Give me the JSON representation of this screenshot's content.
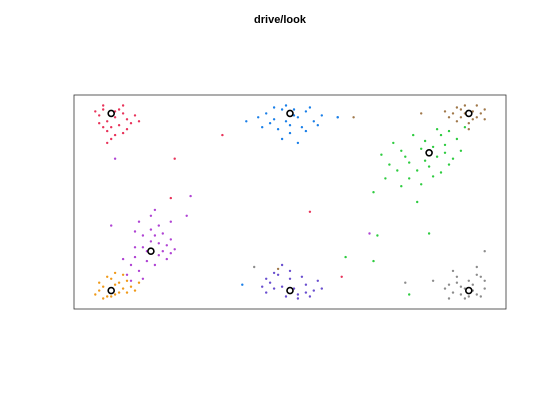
{
  "chart_data": {
    "type": "scatter",
    "title": "drive/look",
    "xlabel": "",
    "ylabel": "",
    "xlim": [
      0,
      1
    ],
    "ylim": [
      0,
      1
    ],
    "grid": false,
    "axis_ticks": false,
    "series": [
      {
        "color": "#e8335a",
        "center": [
          0.05,
          0.95
        ],
        "points": [
          [
            0.03,
            0.97
          ],
          [
            0.06,
            0.93
          ],
          [
            0.08,
            0.95
          ],
          [
            0.04,
            0.91
          ],
          [
            0.02,
            0.94
          ],
          [
            0.07,
            0.89
          ],
          [
            0.05,
            0.88
          ],
          [
            0.09,
            0.92
          ],
          [
            0.03,
            0.99
          ],
          [
            0.06,
            0.96
          ],
          [
            0.1,
            0.9
          ],
          [
            0.04,
            0.86
          ],
          [
            0.08,
            0.85
          ],
          [
            0.02,
            0.9
          ],
          [
            0.11,
            0.94
          ],
          [
            0.05,
            0.82
          ],
          [
            0.07,
            0.97
          ],
          [
            0.01,
            0.96
          ],
          [
            0.09,
            0.87
          ],
          [
            0.04,
            0.8
          ],
          [
            0.06,
            0.84
          ],
          [
            0.12,
            0.91
          ],
          [
            0.03,
            0.88
          ],
          [
            0.08,
            0.99
          ]
        ]
      },
      {
        "color": "#1a7fe8",
        "center": [
          0.5,
          0.95
        ],
        "points": [
          [
            0.48,
            0.97
          ],
          [
            0.52,
            0.93
          ],
          [
            0.46,
            0.92
          ],
          [
            0.54,
            0.96
          ],
          [
            0.5,
            0.89
          ],
          [
            0.44,
            0.95
          ],
          [
            0.56,
            0.91
          ],
          [
            0.49,
            0.99
          ],
          [
            0.53,
            0.88
          ],
          [
            0.47,
            0.87
          ],
          [
            0.51,
            0.94
          ],
          [
            0.45,
            0.9
          ],
          [
            0.55,
            0.98
          ],
          [
            0.42,
            0.93
          ],
          [
            0.58,
            0.94
          ],
          [
            0.5,
            0.85
          ],
          [
            0.48,
            0.82
          ],
          [
            0.52,
            0.8
          ],
          [
            0.46,
            0.98
          ],
          [
            0.54,
            0.86
          ],
          [
            0.43,
            0.88
          ],
          [
            0.57,
            0.89
          ],
          [
            0.49,
            0.91
          ],
          [
            0.51,
            0.97
          ],
          [
            0.62,
            0.93
          ],
          [
            0.39,
            0.91
          ]
        ]
      },
      {
        "color": "#2ecc40",
        "center": [
          0.85,
          0.75
        ],
        "points": [
          [
            0.83,
            0.77
          ],
          [
            0.87,
            0.73
          ],
          [
            0.8,
            0.7
          ],
          [
            0.89,
            0.79
          ],
          [
            0.85,
            0.68
          ],
          [
            0.78,
            0.76
          ],
          [
            0.91,
            0.72
          ],
          [
            0.84,
            0.81
          ],
          [
            0.82,
            0.66
          ],
          [
            0.88,
            0.84
          ],
          [
            0.76,
            0.8
          ],
          [
            0.93,
            0.76
          ],
          [
            0.86,
            0.63
          ],
          [
            0.79,
            0.73
          ],
          [
            0.9,
            0.69
          ],
          [
            0.81,
            0.84
          ],
          [
            0.87,
            0.87
          ],
          [
            0.75,
            0.69
          ],
          [
            0.92,
            0.82
          ],
          [
            0.84,
            0.71
          ],
          [
            0.8,
            0.62
          ],
          [
            0.86,
            0.78
          ],
          [
            0.77,
            0.66
          ],
          [
            0.94,
            0.88
          ],
          [
            0.73,
            0.74
          ],
          [
            0.83,
            0.59
          ],
          [
            0.89,
            0.75
          ],
          [
            0.71,
            0.55
          ],
          [
            0.82,
            0.5
          ],
          [
            0.78,
            0.58
          ],
          [
            0.85,
            0.34
          ],
          [
            0.88,
            0.65
          ],
          [
            0.74,
            0.62
          ],
          [
            0.9,
            0.86
          ]
        ]
      },
      {
        "color": "#a0784a",
        "center": [
          0.95,
          0.95
        ],
        "points": [
          [
            0.93,
            0.97
          ],
          [
            0.97,
            0.93
          ],
          [
            0.95,
            0.9
          ],
          [
            0.91,
            0.95
          ],
          [
            0.99,
            0.97
          ],
          [
            0.94,
            0.99
          ],
          [
            0.96,
            0.92
          ],
          [
            0.92,
            0.91
          ],
          [
            0.98,
            0.95
          ],
          [
            0.9,
            0.93
          ],
          [
            0.96,
            0.96
          ],
          [
            0.93,
            0.93
          ],
          [
            0.97,
            0.99
          ],
          [
            0.89,
            0.96
          ],
          [
            0.95,
            0.87
          ],
          [
            0.99,
            0.92
          ],
          [
            0.94,
            0.95
          ],
          [
            0.92,
            0.98
          ]
        ]
      },
      {
        "color": "#b044d4",
        "center": [
          0.15,
          0.25
        ],
        "points": [
          [
            0.13,
            0.27
          ],
          [
            0.17,
            0.23
          ],
          [
            0.15,
            0.3
          ],
          [
            0.11,
            0.22
          ],
          [
            0.19,
            0.28
          ],
          [
            0.14,
            0.2
          ],
          [
            0.16,
            0.33
          ],
          [
            0.1,
            0.18
          ],
          [
            0.18,
            0.25
          ],
          [
            0.12,
            0.15
          ],
          [
            0.2,
            0.31
          ],
          [
            0.15,
            0.36
          ],
          [
            0.09,
            0.13
          ],
          [
            0.14,
            0.25
          ],
          [
            0.17,
            0.38
          ],
          [
            0.11,
            0.27
          ],
          [
            0.19,
            0.21
          ],
          [
            0.13,
            0.33
          ],
          [
            0.16,
            0.18
          ],
          [
            0.08,
            0.21
          ],
          [
            0.15,
            0.43
          ],
          [
            0.21,
            0.26
          ],
          [
            0.1,
            0.1
          ],
          [
            0.18,
            0.34
          ],
          [
            0.12,
            0.4
          ],
          [
            0.05,
            0.38
          ],
          [
            0.24,
            0.43
          ],
          [
            0.16,
            0.46
          ],
          [
            0.2,
            0.24
          ],
          [
            0.13,
            0.11
          ],
          [
            0.11,
            0.35
          ],
          [
            0.17,
            0.29
          ]
        ]
      },
      {
        "color": "#f09a1a",
        "center": [
          0.05,
          0.05
        ],
        "points": [
          [
            0.03,
            0.07
          ],
          [
            0.06,
            0.03
          ],
          [
            0.08,
            0.06
          ],
          [
            0.04,
            0.02
          ],
          [
            0.02,
            0.05
          ],
          [
            0.07,
            0.09
          ],
          [
            0.05,
            0.11
          ],
          [
            0.09,
            0.04
          ],
          [
            0.03,
            0.01
          ],
          [
            0.06,
            0.08
          ],
          [
            0.1,
            0.07
          ],
          [
            0.04,
            0.12
          ],
          [
            0.01,
            0.03
          ],
          [
            0.08,
            0.13
          ],
          [
            0.11,
            0.05
          ],
          [
            0.05,
            0.02
          ],
          [
            0.07,
            0.04
          ],
          [
            0.02,
            0.09
          ],
          [
            0.09,
            0.1
          ],
          [
            0.06,
            0.14
          ],
          [
            0.12,
            0.09
          ]
        ]
      },
      {
        "color": "#6a4fcf",
        "center": [
          0.5,
          0.05
        ],
        "points": [
          [
            0.48,
            0.07
          ],
          [
            0.52,
            0.03
          ],
          [
            0.46,
            0.06
          ],
          [
            0.54,
            0.08
          ],
          [
            0.5,
            0.11
          ],
          [
            0.44,
            0.04
          ],
          [
            0.56,
            0.05
          ],
          [
            0.49,
            0.02
          ],
          [
            0.53,
            0.12
          ],
          [
            0.47,
            0.13
          ],
          [
            0.51,
            0.06
          ],
          [
            0.45,
            0.09
          ],
          [
            0.55,
            0.02
          ],
          [
            0.43,
            0.07
          ],
          [
            0.57,
            0.1
          ],
          [
            0.5,
            0.15
          ],
          [
            0.48,
            0.18
          ],
          [
            0.52,
            0.01
          ],
          [
            0.46,
            0.14
          ],
          [
            0.54,
            0.04
          ],
          [
            0.44,
            0.11
          ],
          [
            0.58,
            0.06
          ]
        ]
      },
      {
        "color": "#8c8c8c",
        "center": [
          0.95,
          0.05
        ],
        "points": [
          [
            0.93,
            0.07
          ],
          [
            0.97,
            0.03
          ],
          [
            0.95,
            0.1
          ],
          [
            0.91,
            0.04
          ],
          [
            0.99,
            0.06
          ],
          [
            0.94,
            0.01
          ],
          [
            0.96,
            0.08
          ],
          [
            0.92,
            0.12
          ],
          [
            0.98,
            0.02
          ],
          [
            0.9,
            0.08
          ],
          [
            0.96,
            0.05
          ],
          [
            0.93,
            0.03
          ],
          [
            0.97,
            0.13
          ],
          [
            0.89,
            0.06
          ],
          [
            0.95,
            0.02
          ],
          [
            0.99,
            0.1
          ],
          [
            0.94,
            0.06
          ],
          [
            0.92,
            0.09
          ],
          [
            0.98,
            0.12
          ],
          [
            0.91,
            0.15
          ],
          [
            0.86,
            0.1
          ],
          [
            0.97,
            0.17
          ],
          [
            0.9,
            0.01
          ],
          [
            0.99,
            0.25
          ]
        ]
      }
    ],
    "outliers": [
      {
        "color": "#e8335a",
        "points": [
          [
            0.33,
            0.84
          ],
          [
            0.21,
            0.72
          ]
        ]
      },
      {
        "color": "#1a7fe8",
        "points": [
          [
            0.62,
            0.93
          ],
          [
            0.38,
            0.08
          ]
        ]
      },
      {
        "color": "#2ecc40",
        "points": [
          [
            0.72,
            0.33
          ],
          [
            0.71,
            0.2
          ],
          [
            0.64,
            0.22
          ],
          [
            0.8,
            0.03
          ]
        ]
      },
      {
        "color": "#a0784a",
        "points": [
          [
            0.66,
            0.93
          ],
          [
            0.83,
            0.95
          ],
          [
            0.47,
            0.16
          ]
        ]
      },
      {
        "color": "#b044d4",
        "points": [
          [
            0.25,
            0.53
          ],
          [
            0.2,
            0.4
          ],
          [
            0.06,
            0.72
          ],
          [
            0.7,
            0.34
          ]
        ]
      },
      {
        "color": "#e8335a",
        "points": [
          [
            0.2,
            0.52
          ],
          [
            0.55,
            0.45
          ],
          [
            0.63,
            0.12
          ]
        ]
      },
      {
        "color": "#8c8c8c",
        "points": [
          [
            0.41,
            0.17
          ],
          [
            0.79,
            0.09
          ]
        ]
      }
    ]
  }
}
